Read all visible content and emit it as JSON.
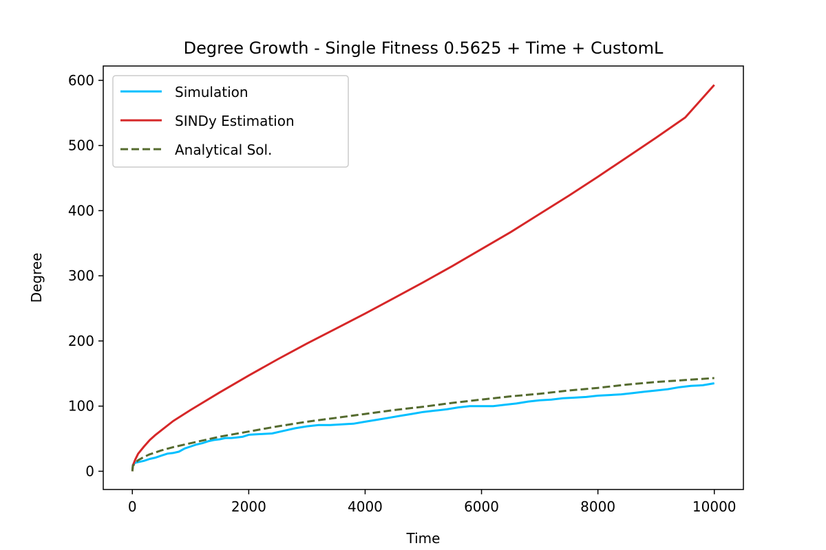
{
  "chart_data": {
    "type": "line",
    "title": "Degree Growth - Single Fitness 0.5625 + Time + CustomL",
    "xlabel": "Time",
    "ylabel": "Degree",
    "xlim": [
      -500,
      10500
    ],
    "ylim": [
      -28,
      622
    ],
    "xticks": [
      0,
      2000,
      4000,
      6000,
      8000,
      10000
    ],
    "yticks": [
      0,
      100,
      200,
      300,
      400,
      500,
      600
    ],
    "legend_position": "top-left",
    "grid": false,
    "series": [
      {
        "name": "Simulation",
        "color": "#00bfff",
        "style": "solid",
        "x": [
          0,
          10,
          50,
          100,
          200,
          300,
          400,
          500,
          600,
          700,
          800,
          900,
          1000,
          1100,
          1200,
          1300,
          1400,
          1500,
          1600,
          1700,
          1800,
          1900,
          2000,
          2200,
          2400,
          2600,
          2800,
          3000,
          3200,
          3400,
          3600,
          3800,
          4000,
          4200,
          4400,
          4600,
          4800,
          5000,
          5200,
          5400,
          5600,
          5800,
          6000,
          6200,
          6400,
          6600,
          6800,
          7000,
          7200,
          7400,
          7600,
          7800,
          8000,
          8200,
          8400,
          8600,
          8800,
          9000,
          9200,
          9400,
          9600,
          9800,
          10000
        ],
        "y": [
          2,
          10,
          13,
          14,
          16,
          19,
          21,
          24,
          27,
          28,
          30,
          35,
          38,
          41,
          43,
          46,
          48,
          49,
          51,
          51,
          52,
          53,
          56,
          57,
          58,
          62,
          66,
          69,
          71,
          71,
          72,
          73,
          76,
          79,
          82,
          85,
          88,
          91,
          93,
          95,
          98,
          100,
          100,
          100,
          102,
          104,
          107,
          109,
          110,
          112,
          113,
          114,
          116,
          117,
          118,
          120,
          122,
          124,
          126,
          129,
          131,
          132,
          135
        ]
      },
      {
        "name": "SINDy Estimation",
        "color": "#d62728",
        "style": "solid",
        "x": [
          0,
          10,
          50,
          100,
          200,
          300,
          400,
          500,
          700,
          1000,
          1500,
          2000,
          2500,
          3000,
          3500,
          4000,
          4500,
          5000,
          5500,
          6000,
          6500,
          7000,
          7500,
          8000,
          8500,
          9000,
          9500,
          10000
        ],
        "y": [
          0,
          9,
          18,
          27,
          38,
          48,
          56,
          63,
          77,
          94,
          121,
          147,
          172,
          196,
          219,
          242,
          266,
          290,
          315,
          341,
          367,
          395,
          423,
          452,
          482,
          512,
          543,
          593
        ]
      },
      {
        "name": "Analytical Sol.",
        "color": "#556b2f",
        "style": "dashed",
        "x": [
          0,
          10,
          50,
          100,
          200,
          300,
          400,
          500,
          700,
          1000,
          1500,
          2000,
          2500,
          3000,
          3500,
          4000,
          4500,
          5000,
          5500,
          6000,
          6500,
          7000,
          7500,
          8000,
          8500,
          9000,
          9500,
          10000
        ],
        "y": [
          0,
          8,
          13,
          17,
          22,
          26,
          29,
          32,
          37,
          43,
          53,
          61,
          69,
          76,
          82,
          88,
          94,
          99,
          105,
          110,
          115,
          119,
          124,
          128,
          133,
          137,
          140,
          143
        ]
      }
    ]
  }
}
